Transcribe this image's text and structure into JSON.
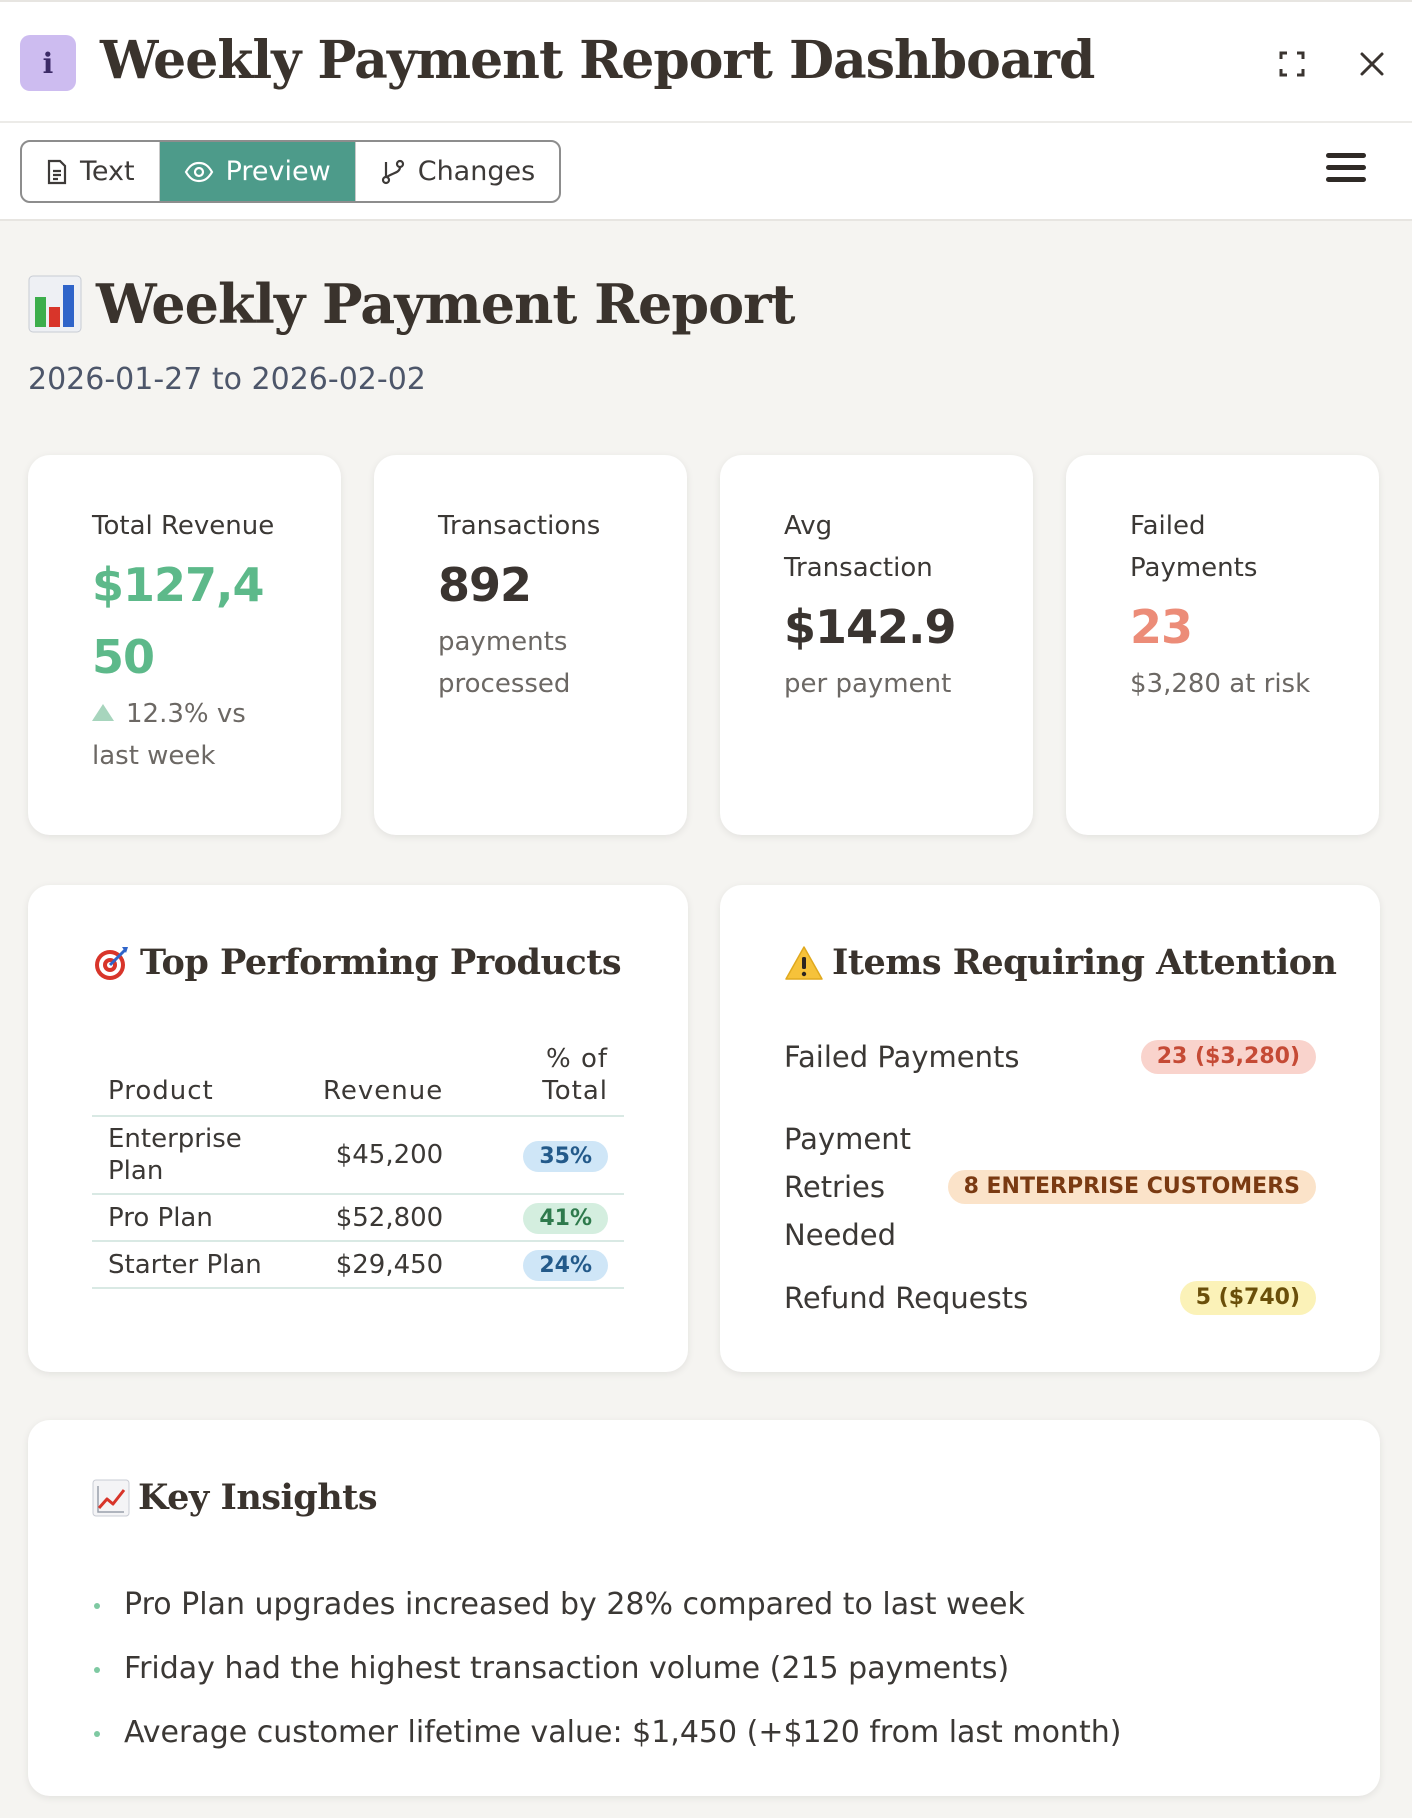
{
  "window": {
    "title": "Weekly Payment Report Dashboard",
    "info_badge": "i"
  },
  "toolbar": {
    "tabs": [
      {
        "label": "Text",
        "icon": "document-icon",
        "active": false
      },
      {
        "label": "Preview",
        "icon": "eye-icon",
        "active": true
      },
      {
        "label": "Changes",
        "icon": "git-branch-icon",
        "active": false
      }
    ],
    "accent_color": "#4d9b8a"
  },
  "report": {
    "title": "Weekly Payment Report",
    "title_icon": "bar-chart-emoji",
    "date_range": "2026-01-27 to 2026-02-02"
  },
  "stats": [
    {
      "label": "Total Revenue",
      "value": "$127,450",
      "sub": "12.3% vs last week",
      "trend": "up",
      "color": "#5db98a"
    },
    {
      "label": "Transactions",
      "value": "892",
      "sub": "payments processed",
      "color": "#3a3430"
    },
    {
      "label": "Avg Transaction",
      "value": "$142.9",
      "sub": "per payment",
      "color": "#3a3430"
    },
    {
      "label": "Failed Payments",
      "value": "23",
      "sub": "$3,280 at risk",
      "color": "#ec8c78"
    }
  ],
  "products": {
    "title": "Top Performing Products",
    "title_icon": "target-emoji",
    "columns": [
      "Product",
      "Revenue",
      "% of Total"
    ],
    "rows": [
      {
        "product": "Enterprise Plan",
        "revenue": "$45,200",
        "pct": "35%"
      },
      {
        "product": "Pro Plan",
        "revenue": "$52,800",
        "pct": "41%"
      },
      {
        "product": "Starter Plan",
        "revenue": "$29,450",
        "pct": "24%"
      }
    ]
  },
  "attention": {
    "title": "Items Requiring Attention",
    "title_icon": "warning-emoji",
    "items": [
      {
        "label": "Failed Payments",
        "badge": "23 ($3,280)"
      },
      {
        "label": "Payment Retries Needed",
        "badge": "8 ENTERPRISE CUSTOMERS"
      },
      {
        "label": "Refund Requests",
        "badge": "5 ($740)"
      }
    ]
  },
  "insights": {
    "title": "Key Insights",
    "title_icon": "chart-increasing-emoji",
    "items": [
      "Pro Plan upgrades increased by 28% compared to last week",
      "Friday had the highest transaction volume (215 payments)",
      "Average customer lifetime value: $1,450 (+$120 from last month)"
    ]
  }
}
